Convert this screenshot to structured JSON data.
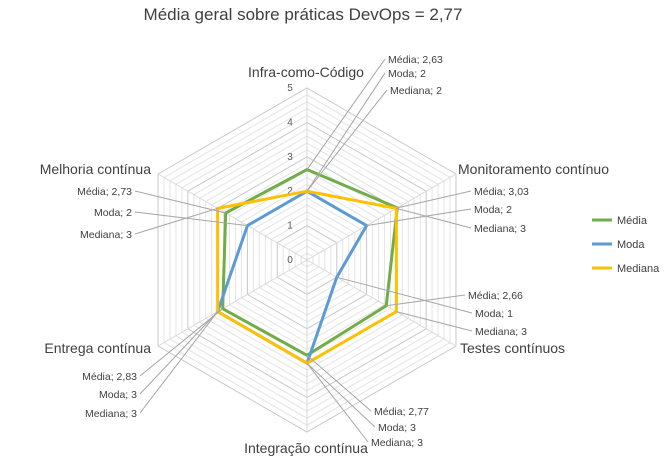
{
  "chart_data": {
    "type": "radar",
    "title": "Média geral sobre práticas DevOps = 2,77",
    "categories": [
      "Infra-como-Código",
      "Monitoramento contínuo",
      "Testes contínuos",
      "Integração contínua",
      "Entrega contínua",
      "Melhoria contínua"
    ],
    "series": [
      {
        "name": "Média",
        "color": "#70AD47",
        "values": [
          2.63,
          3.03,
          2.66,
          2.77,
          2.83,
          2.73
        ]
      },
      {
        "name": "Moda",
        "color": "#5B9BD5",
        "values": [
          2,
          2,
          1,
          3,
          3,
          2
        ]
      },
      {
        "name": "Mediana",
        "color": "#FFC000",
        "values": [
          2,
          3,
          3,
          3,
          3,
          3
        ]
      }
    ],
    "rlim": [
      0,
      5
    ],
    "ticks": [
      "0",
      "1",
      "2",
      "3",
      "4",
      "5"
    ],
    "legend": "right",
    "data_labels": [
      [
        "Média; 2,63",
        "Moda; 2",
        "Mediana; 2"
      ],
      [
        "Média; 3,03",
        "Moda; 2",
        "Mediana; 3"
      ],
      [
        "Média; 2,66",
        "Moda; 1",
        "Mediana; 3"
      ],
      [
        "Média; 2,77",
        "Moda; 3",
        "Mediana; 3"
      ],
      [
        "Média; 2,83",
        "Moda; 3",
        "Mediana; 3"
      ],
      [
        "Média; 2,73",
        "Moda; 2",
        "Mediana; 3"
      ]
    ]
  }
}
